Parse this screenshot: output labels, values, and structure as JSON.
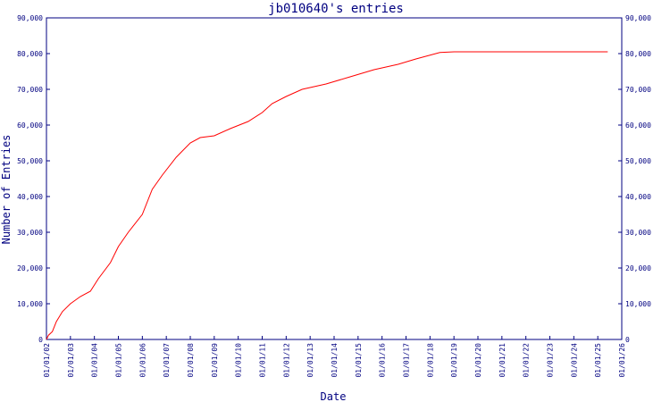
{
  "chart_data": {
    "type": "line",
    "title": "jb010640's entries",
    "xlabel": "Date",
    "ylabel": "Number of Entries",
    "ylim": [
      0,
      90000
    ],
    "y_ticks": [
      0,
      10000,
      20000,
      30000,
      40000,
      50000,
      60000,
      70000,
      80000,
      90000
    ],
    "y_tick_labels": [
      "0",
      "10,000",
      "20,000",
      "30,000",
      "40,000",
      "50,000",
      "60,000",
      "70,000",
      "80,000",
      "90,000"
    ],
    "x_tick_labels": [
      "01/01/02",
      "01/01/03",
      "01/01/04",
      "01/01/05",
      "01/01/06",
      "01/01/07",
      "01/01/08",
      "01/01/09",
      "01/01/10",
      "01/01/11",
      "01/01/12",
      "01/01/13",
      "01/01/14",
      "01/01/15",
      "01/01/16",
      "01/01/17",
      "01/01/18",
      "01/01/19",
      "01/01/20",
      "01/01/21",
      "01/01/22",
      "01/01/23",
      "01/01/24",
      "01/01/25",
      "01/01/26"
    ],
    "grid": false,
    "colors": {
      "axis": "#000080",
      "line": "#ff0000",
      "background": "#ffffff"
    },
    "series": [
      {
        "values": [
          [
            "2002-01-01",
            0
          ],
          [
            "2002-02-01",
            1200
          ],
          [
            "2002-04-01",
            2200
          ],
          [
            "2002-06-01",
            5000
          ],
          [
            "2002-09-01",
            7800
          ],
          [
            "2003-01-01",
            10000
          ],
          [
            "2003-06-01",
            12000
          ],
          [
            "2003-11-01",
            13500
          ],
          [
            "2004-03-01",
            17000
          ],
          [
            "2004-09-01",
            21500
          ],
          [
            "2005-01-01",
            26000
          ],
          [
            "2005-06-01",
            30000
          ],
          [
            "2006-01-01",
            35000
          ],
          [
            "2006-06-01",
            42000
          ],
          [
            "2006-11-01",
            46000
          ],
          [
            "2007-06-01",
            51000
          ],
          [
            "2008-01-01",
            55000
          ],
          [
            "2008-06-01",
            56500
          ],
          [
            "2009-01-01",
            57000
          ],
          [
            "2009-09-01",
            59000
          ],
          [
            "2010-06-01",
            61000
          ],
          [
            "2011-01-01",
            63500
          ],
          [
            "2011-06-01",
            66000
          ],
          [
            "2012-01-01",
            68000
          ],
          [
            "2012-09-01",
            70000
          ],
          [
            "2013-09-01",
            71500
          ],
          [
            "2014-09-01",
            73500
          ],
          [
            "2015-09-01",
            75500
          ],
          [
            "2016-09-01",
            77000
          ],
          [
            "2017-06-01",
            78500
          ],
          [
            "2018-06-01",
            80300
          ],
          [
            "2019-01-01",
            80500
          ],
          [
            "2025-06-01",
            80500
          ]
        ]
      }
    ]
  }
}
